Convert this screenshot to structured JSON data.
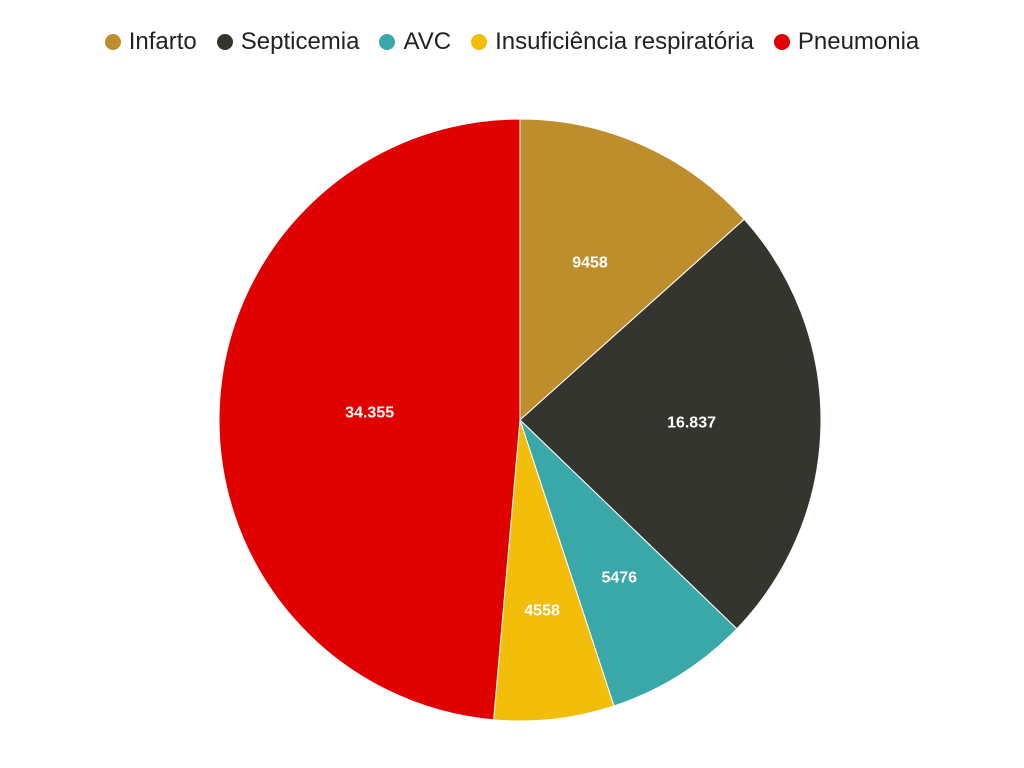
{
  "chart_data": {
    "type": "pie",
    "categories": [
      "Infarto",
      "Septicemia",
      "AVC",
      "Insuficiência respiratória",
      "Pneumonia"
    ],
    "values": [
      9458,
      16837,
      5476,
      4558,
      34355
    ],
    "labels": [
      "9458",
      "16.837",
      "5476",
      "4558",
      "34.355"
    ],
    "colors": [
      "#BE8E2D",
      "#353530",
      "#3AA8A8",
      "#F2BE0A",
      "#E00000"
    ],
    "title": "",
    "legend_position": "top-center",
    "start_angle_deg": 0,
    "direction": "clockwise"
  }
}
